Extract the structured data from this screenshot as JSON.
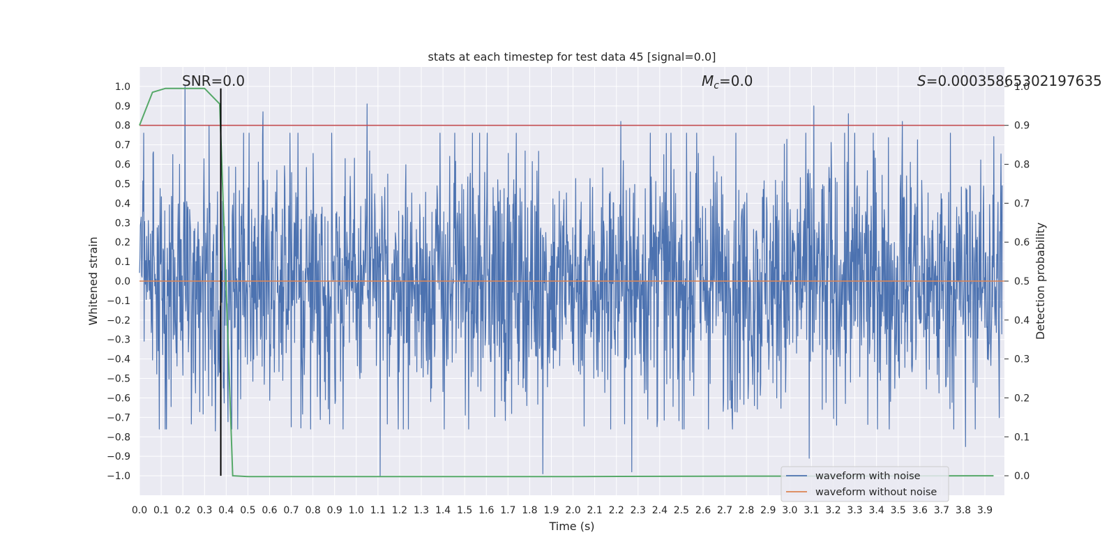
{
  "chart_data": {
    "type": "line",
    "title": "stats at each timestep for test data 45 [signal=0.0]",
    "xlabel": "Time (s)",
    "ylabel": "Whitened strain",
    "y2label": "Detection probability",
    "xlim": [
      0.0,
      3.99
    ],
    "ylim": [
      -1.1,
      1.1
    ],
    "y2lim": [
      -0.05,
      1.05
    ],
    "x_ticks": [
      "0.0",
      "0.1",
      "0.2",
      "0.3",
      "0.4",
      "0.5",
      "0.6",
      "0.7",
      "0.8",
      "0.9",
      "1.0",
      "1.1",
      "1.2",
      "1.3",
      "1.4",
      "1.5",
      "1.6",
      "1.7",
      "1.8",
      "1.9",
      "2.0",
      "2.1",
      "2.2",
      "2.3",
      "2.4",
      "2.5",
      "2.6",
      "2.7",
      "2.8",
      "2.9",
      "3.0",
      "3.1",
      "3.2",
      "3.3",
      "3.4",
      "3.5",
      "3.6",
      "3.7",
      "3.8",
      "3.9"
    ],
    "y_ticks": [
      "1.0",
      "0.9",
      "0.8",
      "0.7",
      "0.6",
      "0.5",
      "0.4",
      "0.3",
      "0.2",
      "0.1",
      "0.0",
      "−0.1",
      "−0.2",
      "−0.3",
      "−0.4",
      "−0.5",
      "−0.6",
      "−0.7",
      "−0.8",
      "−0.9",
      "−1.0"
    ],
    "y2_ticks": [
      "1.0",
      "0.9",
      "0.8",
      "0.7",
      "0.6",
      "0.5",
      "0.4",
      "0.3",
      "0.2",
      "0.1",
      "0.0"
    ],
    "annotations": {
      "snr": "SNR=0.0",
      "mc_symbol": "M",
      "mc_sub": "c",
      "mc_value": "=0.0",
      "s_symbol": "S",
      "s_value": "=0.00035865302197635",
      "peaks": [
        {
          "t": 0.21,
          "v": 1.0
        },
        {
          "t": 0.32,
          "v": 0.8
        },
        {
          "t": 0.57,
          "v": 0.87
        },
        {
          "t": 1.05,
          "v": 0.91
        },
        {
          "t": 2.22,
          "v": 0.82
        },
        {
          "t": 3.11,
          "v": 0.9
        },
        {
          "t": 3.27,
          "v": 0.86
        },
        {
          "t": 3.52,
          "v": 0.82
        },
        {
          "t": 0.35,
          "v": -0.77
        },
        {
          "t": 1.11,
          "v": -1.0
        },
        {
          "t": 1.86,
          "v": -0.99
        },
        {
          "t": 2.27,
          "v": -0.98
        },
        {
          "t": 3.09,
          "v": -0.91
        },
        {
          "t": 3.81,
          "v": -0.85
        }
      ]
    },
    "series": [
      {
        "name": "waveform with noise",
        "color": "#4c72b0",
        "description": "dense noise fluctuating roughly between -0.7 and 0.7 with peaks near ±1.0",
        "n_samples": 2048,
        "seed": 45
      },
      {
        "name": "waveform without noise",
        "color": "#dd8452",
        "values": "constant 0.0"
      },
      {
        "name": "detection probability",
        "axis": "y2",
        "color": "#55a868",
        "x": [
          0.0,
          0.06,
          0.12,
          0.18,
          0.24,
          0.3,
          0.37,
          0.43,
          0.5,
          1.0,
          2.0,
          2.8,
          3.0,
          3.94
        ],
        "values": [
          0.9,
          0.985,
          0.995,
          0.995,
          0.995,
          0.995,
          0.955,
          0.0,
          -0.002,
          -0.002,
          -0.002,
          -0.001,
          -0.001,
          0.0
        ]
      },
      {
        "name": "threshold",
        "axis": "y2",
        "color": "#c44e52",
        "values": "constant 0.9"
      },
      {
        "name": "trigger",
        "axis": "x",
        "color": "#000000",
        "x": 0.375
      }
    ],
    "legend": {
      "position": "bottom-right",
      "entries": [
        {
          "label": "waveform with noise",
          "color": "#4c72b0"
        },
        {
          "label": "waveform without noise",
          "color": "#dd8452"
        }
      ]
    },
    "grid": true,
    "background": "#eaeaf2"
  }
}
